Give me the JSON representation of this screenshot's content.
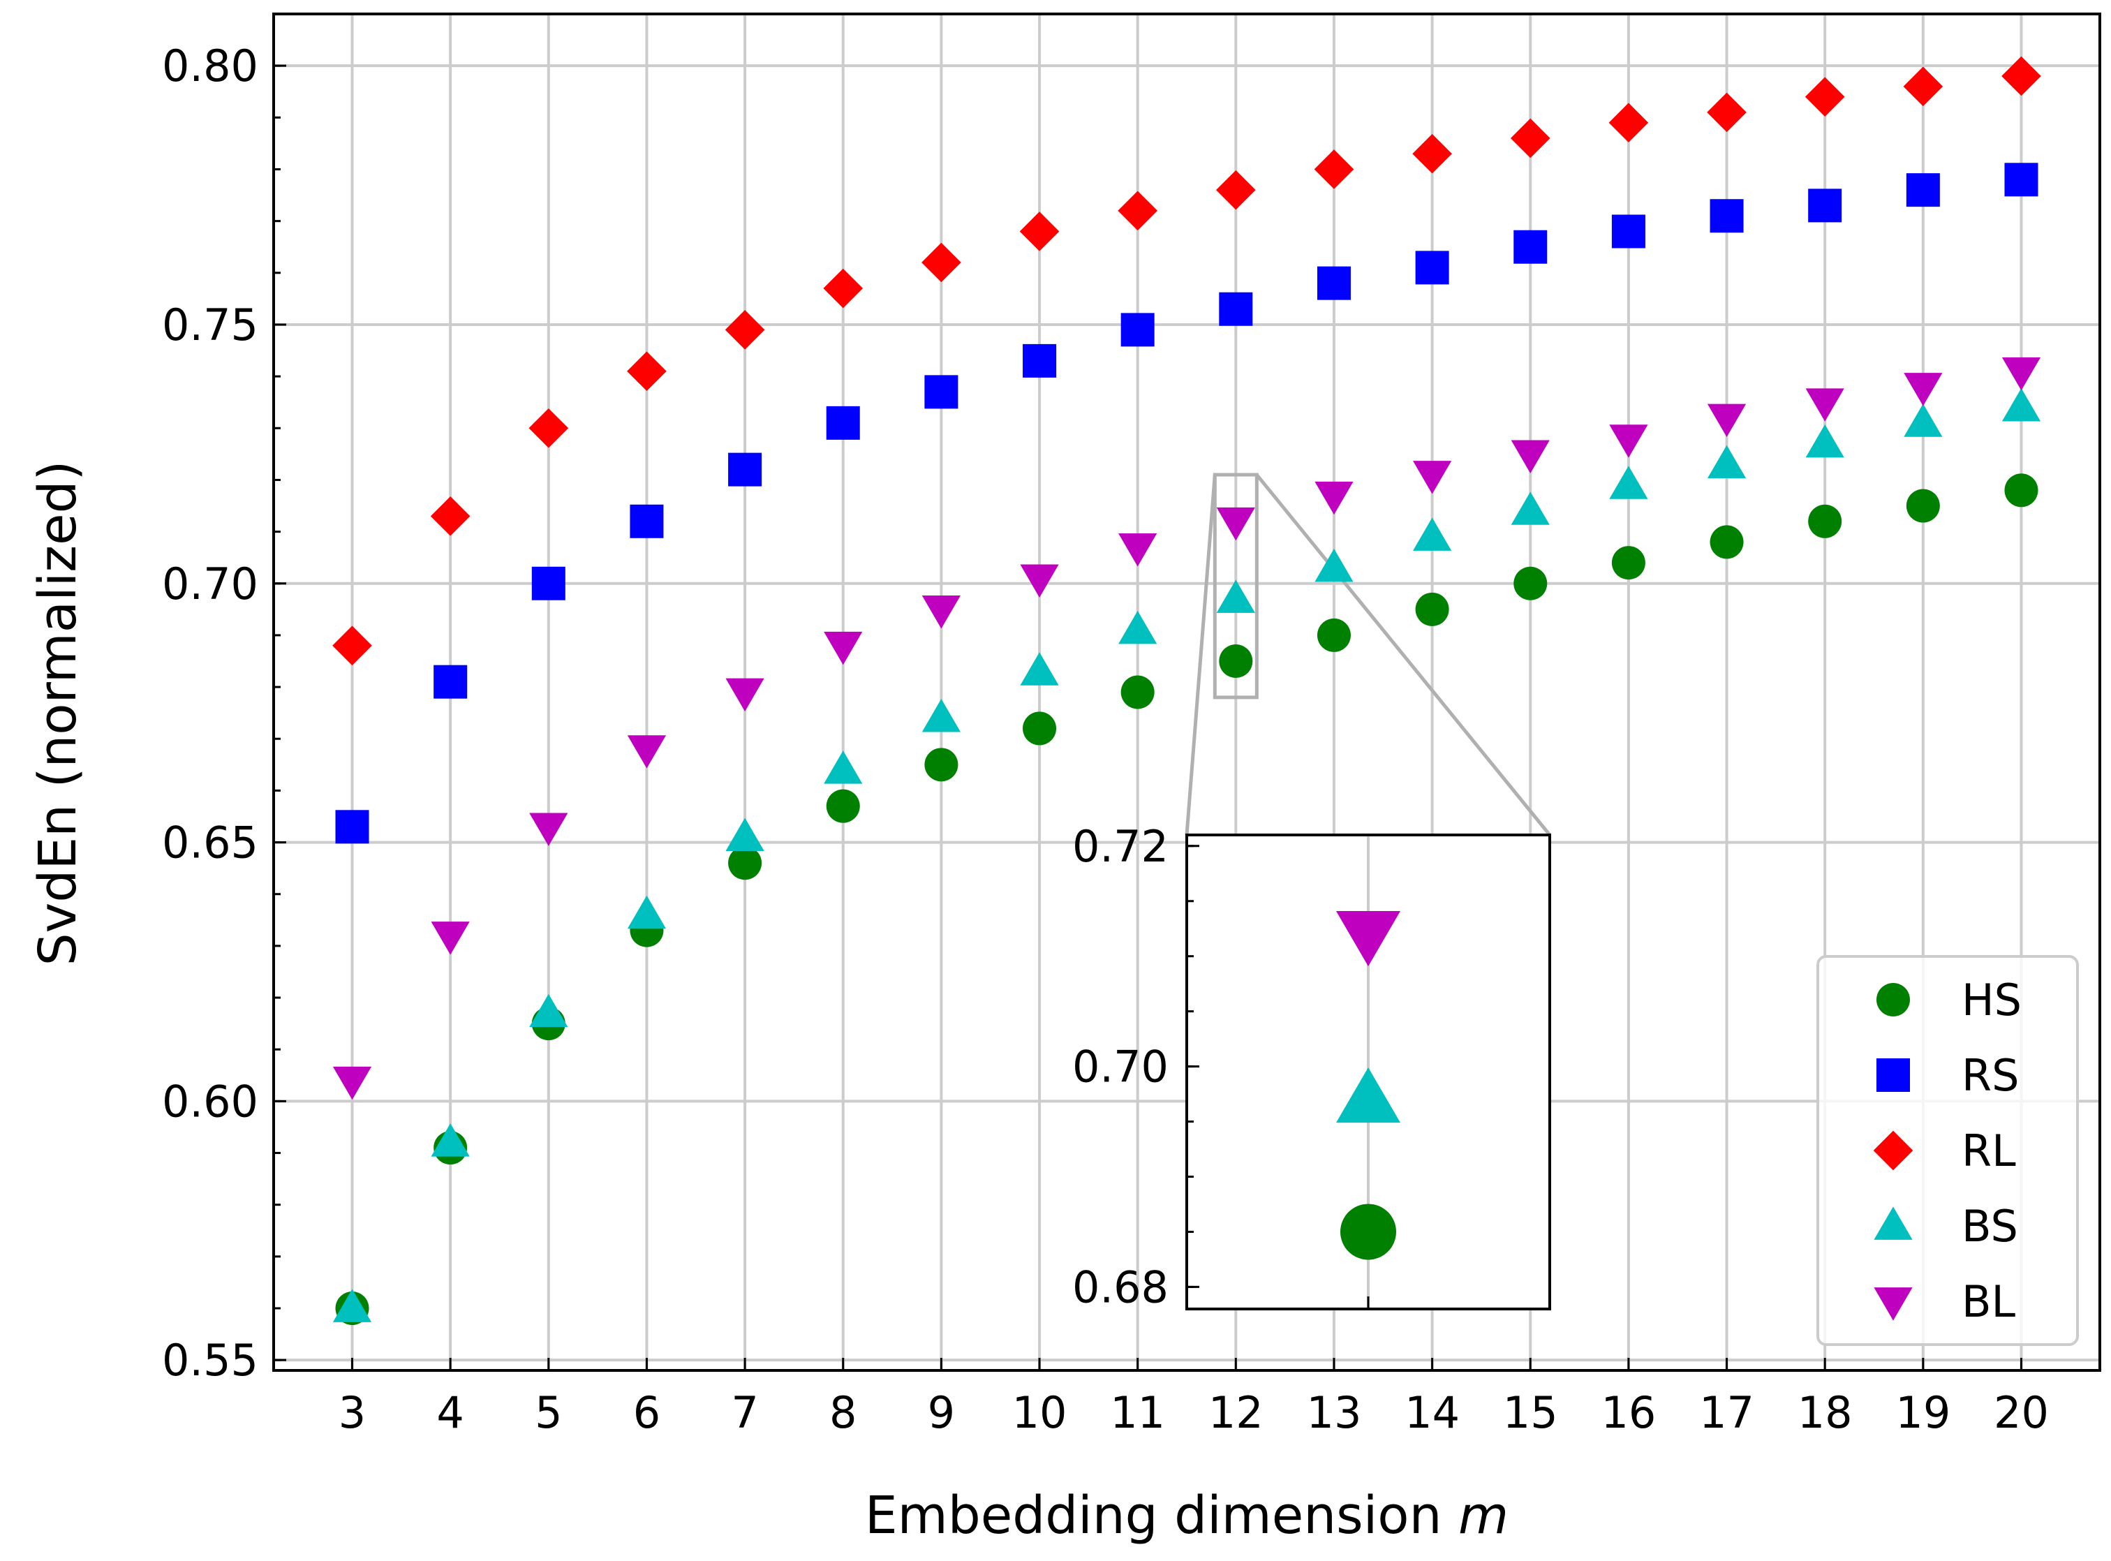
{
  "chart_data": {
    "type": "scatter",
    "xlabel": "Embedding dimension",
    "xlabel_var": "m",
    "ylabel": "SvdEn (normalized)",
    "x": [
      3,
      4,
      5,
      6,
      7,
      8,
      9,
      10,
      11,
      12,
      13,
      14,
      15,
      16,
      17,
      18,
      19,
      20
    ],
    "xlim": [
      2.2,
      20.8
    ],
    "ylim": [
      0.548,
      0.81
    ],
    "yticks": [
      0.55,
      0.6,
      0.65,
      0.7,
      0.75,
      0.8
    ],
    "ytick_labels": [
      "0.55",
      "0.60",
      "0.65",
      "0.70",
      "0.75",
      "0.80"
    ],
    "grid": true,
    "legend_position": "bottom-right",
    "series": [
      {
        "name": "HS",
        "color": "#008000",
        "marker": "circle",
        "values": [
          0.56,
          0.591,
          0.615,
          0.633,
          0.646,
          0.657,
          0.665,
          0.672,
          0.679,
          0.685,
          0.69,
          0.695,
          0.7,
          0.704,
          0.708,
          0.712,
          0.715,
          0.718
        ]
      },
      {
        "name": "RS",
        "color": "#0000ff",
        "marker": "square",
        "values": [
          0.653,
          0.681,
          0.7,
          0.712,
          0.722,
          0.731,
          0.737,
          0.743,
          0.749,
          0.753,
          0.758,
          0.761,
          0.765,
          0.768,
          0.771,
          0.773,
          0.776,
          0.778
        ]
      },
      {
        "name": "RL",
        "color": "#ff0000",
        "marker": "diamond",
        "values": [
          0.688,
          0.713,
          0.73,
          0.741,
          0.749,
          0.757,
          0.762,
          0.768,
          0.772,
          0.776,
          0.78,
          0.783,
          0.786,
          0.789,
          0.791,
          0.794,
          0.796,
          0.798
        ]
      },
      {
        "name": "BS",
        "color": "#00bfbf",
        "marker": "triangle-up",
        "values": [
          0.56,
          0.592,
          0.617,
          0.636,
          0.651,
          0.664,
          0.674,
          0.683,
          0.691,
          0.697,
          0.703,
          0.709,
          0.714,
          0.719,
          0.723,
          0.727,
          0.731,
          0.734
        ]
      },
      {
        "name": "BL",
        "color": "#bf00bf",
        "marker": "triangle-down",
        "values": [
          0.604,
          0.632,
          0.653,
          0.668,
          0.679,
          0.688,
          0.695,
          0.701,
          0.707,
          0.712,
          0.717,
          0.721,
          0.725,
          0.728,
          0.732,
          0.735,
          0.738,
          0.741
        ]
      }
    ],
    "inset": {
      "x": 12,
      "ylim": [
        0.678,
        0.721
      ],
      "yticks": [
        0.68,
        0.7,
        0.72
      ],
      "ytick_labels": [
        "0.68",
        "0.70",
        "0.72"
      ],
      "series": [
        "BL",
        "BS",
        "HS"
      ]
    }
  }
}
